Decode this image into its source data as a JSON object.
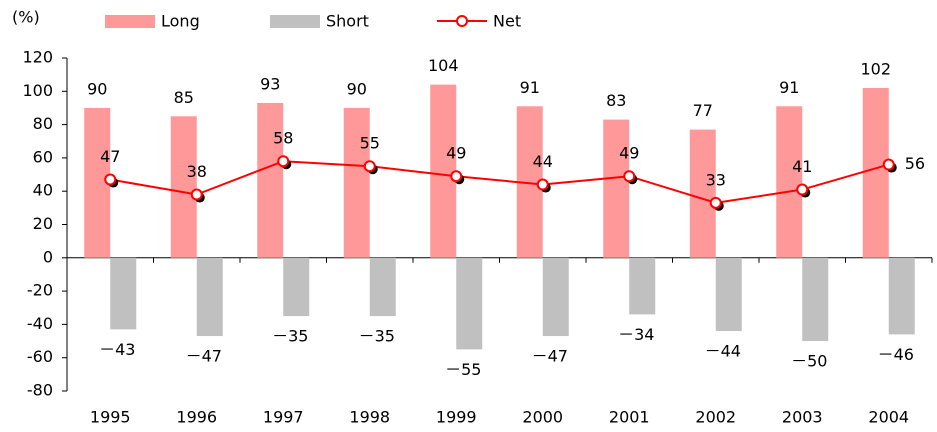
{
  "chart_data": {
    "type": "bar",
    "y_label": "(%)",
    "categories": [
      "1995",
      "1996",
      "1997",
      "1998",
      "1999",
      "2000",
      "2001",
      "2002",
      "2003",
      "2004"
    ],
    "series": [
      {
        "name": "Long",
        "color": "#ff9999",
        "values": [
          90,
          85,
          93,
          90,
          104,
          91,
          83,
          77,
          91,
          102
        ]
      },
      {
        "name": "Short",
        "color": "#c0c0c0",
        "values": [
          -43,
          -47,
          -35,
          -35,
          -55,
          -47,
          -34,
          -44,
          -50,
          -46
        ],
        "value_labels": [
          "－43",
          "－47",
          "－35",
          "－35",
          "－55",
          "－47",
          "－34",
          "－44",
          "－50",
          "－46"
        ]
      },
      {
        "name": "Net",
        "type": "line",
        "color": "#ff0000",
        "values": [
          47,
          38,
          58,
          55,
          49,
          44,
          49,
          33,
          41,
          56
        ]
      }
    ],
    "ylim": [
      -80,
      120
    ],
    "yticks": [
      -80,
      -60,
      -40,
      -20,
      0,
      20,
      40,
      60,
      80,
      100,
      120
    ],
    "grid": false,
    "legend": "top"
  }
}
